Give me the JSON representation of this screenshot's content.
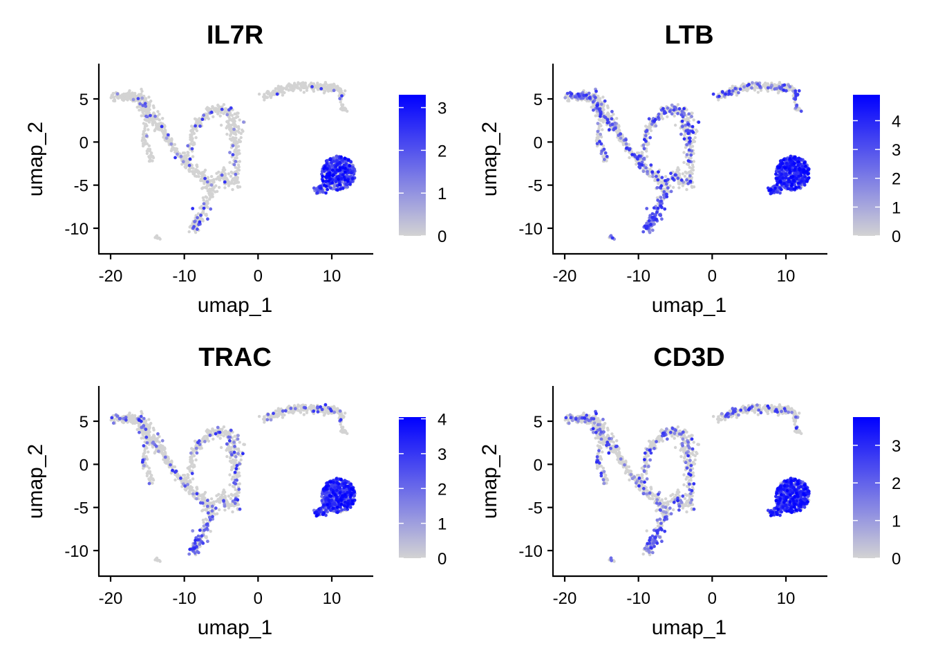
{
  "colors": {
    "low": "#d3d3d3",
    "high": "#0000ff",
    "axis": "#000000",
    "background": "#ffffff"
  },
  "chart_data": [
    {
      "type": "scatter",
      "title": "IL7R",
      "xlabel": "umap_1",
      "ylabel": "umap_2",
      "xlim": [
        -21.5,
        15.5
      ],
      "ylim": [
        -13,
        9
      ],
      "xticks": [
        -20,
        -10,
        0,
        10
      ],
      "xtick_labels": [
        "-20",
        "-10",
        "0",
        "10"
      ],
      "yticks": [
        5,
        0,
        -5,
        -10
      ],
      "ytick_labels": [
        "5",
        "0",
        "-5",
        "-10"
      ],
      "grid": false,
      "legend": {
        "type": "colorbar",
        "position": "right",
        "min": 0,
        "max": 3.3,
        "ticks": [
          0,
          1,
          2,
          3
        ],
        "tick_labels": [
          "0",
          "1",
          "2",
          "3"
        ]
      },
      "series": [
        {
          "values": []
        }
      ]
    },
    {
      "type": "scatter",
      "title": "LTB",
      "xlabel": "umap_1",
      "ylabel": "umap_2",
      "xlim": [
        -21.5,
        15.5
      ],
      "ylim": [
        -13,
        9
      ],
      "xticks": [
        -20,
        -10,
        0,
        10
      ],
      "xtick_labels": [
        "-20",
        "-10",
        "0",
        "10"
      ],
      "yticks": [
        5,
        0,
        -5,
        -10
      ],
      "ytick_labels": [
        "5",
        "0",
        "-5",
        "-10"
      ],
      "grid": false,
      "legend": {
        "type": "colorbar",
        "position": "right",
        "min": 0,
        "max": 4.9,
        "ticks": [
          0,
          1,
          2,
          3,
          4
        ],
        "tick_labels": [
          "0",
          "1",
          "2",
          "3",
          "4"
        ]
      },
      "series": [
        {
          "values": []
        }
      ]
    },
    {
      "type": "scatter",
      "title": "TRAC",
      "xlabel": "umap_1",
      "ylabel": "umap_2",
      "xlim": [
        -21.5,
        15.5
      ],
      "ylim": [
        -13,
        9
      ],
      "xticks": [
        -20,
        -10,
        0,
        10
      ],
      "xtick_labels": [
        "-20",
        "-10",
        "0",
        "10"
      ],
      "yticks": [
        5,
        0,
        -5,
        -10
      ],
      "ytick_labels": [
        "5",
        "0",
        "-5",
        "-10"
      ],
      "grid": false,
      "legend": {
        "type": "colorbar",
        "position": "right",
        "min": 0,
        "max": 4.05,
        "ticks": [
          0,
          1,
          2,
          3,
          4
        ],
        "tick_labels": [
          "0",
          "1",
          "2",
          "3",
          "4"
        ]
      },
      "series": [
        {
          "values": []
        }
      ]
    },
    {
      "type": "scatter",
      "title": "CD3D",
      "xlabel": "umap_1",
      "ylabel": "umap_2",
      "xlim": [
        -21.5,
        15.5
      ],
      "ylim": [
        -13,
        9
      ],
      "xticks": [
        -20,
        -10,
        0,
        10
      ],
      "xtick_labels": [
        "-20",
        "-10",
        "0",
        "10"
      ],
      "yticks": [
        5,
        0,
        -5,
        -10
      ],
      "ytick_labels": [
        "5",
        "0",
        "-5",
        "-10"
      ],
      "grid": false,
      "legend": {
        "type": "colorbar",
        "position": "right",
        "min": 0,
        "max": 3.75,
        "ticks": [
          0,
          1,
          2,
          3
        ],
        "tick_labels": [
          "0",
          "1",
          "2",
          "3"
        ]
      },
      "series": [
        {
          "values": []
        }
      ]
    }
  ]
}
